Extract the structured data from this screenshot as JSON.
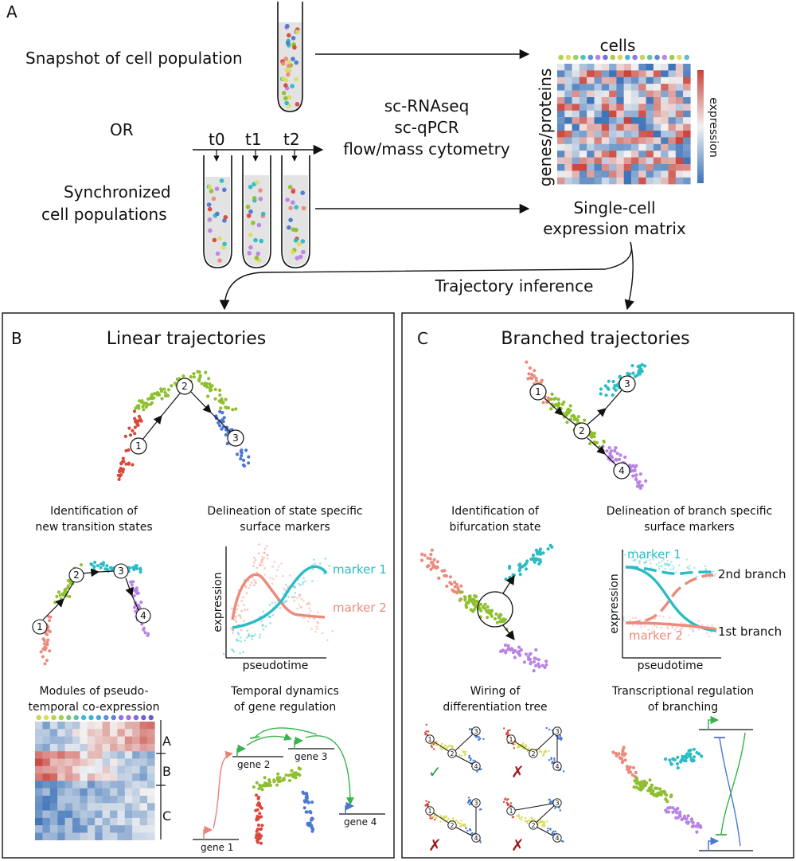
{
  "panel_letters": {
    "a": "A",
    "b": "B",
    "c": "C"
  },
  "panel_a": {
    "snapshot_label": "Snapshot of cell population",
    "or_label": "OR",
    "timepoints": [
      "t0",
      "t1",
      "t2"
    ],
    "synchronized_line1": "Synchronized",
    "synchronized_line2": "cell populations",
    "methods": [
      "sc-RNAseq",
      "sc-qPCR",
      "flow/mass cytometry"
    ],
    "matrix_cols_label": "cells",
    "matrix_rows_label": "genes/proteins",
    "colorbar_label": "expression",
    "matrix_title_line1": "Single-cell",
    "matrix_title_line2": "expression matrix",
    "trajectory_inference": "Trajectory inference"
  },
  "panel_b": {
    "title": "Linear trajectories",
    "states": [
      "1",
      "2",
      "3",
      "4"
    ],
    "ident_line1": "Identification of",
    "ident_line2": "new transition states",
    "delin_line1": "Delineation of state specific",
    "delin_line2": "surface markers",
    "marker1": "marker 1",
    "marker2": "marker 2",
    "ylabel": "expression",
    "xlabel": "pseudotime",
    "modules_line1": "Modules of pseudo-",
    "modules_line2": "temporal co-expression",
    "module_labels": [
      "A",
      "B",
      "C"
    ],
    "temporal_line1": "Temporal dynamics",
    "temporal_line2": "of gene regulation",
    "genes": [
      "gene 1",
      "gene 2",
      "gene 3",
      "gene 4"
    ]
  },
  "panel_c": {
    "title": "Branched trajectories",
    "ident_line1": "Identification of",
    "ident_line2": "bifurcation state",
    "delin_line1": "Delineation of branch specific",
    "delin_line2": "surface markers",
    "marker1": "marker 1",
    "marker2": "marker 2",
    "branch2": "2nd branch",
    "branch1": "1st branch",
    "ylabel": "expression",
    "xlabel": "pseudotime",
    "wiring_line1": "Wiring of",
    "wiring_line2": "differentiation tree",
    "check": "✓",
    "cross": "✗",
    "transcr_line1": "Transcriptional regulation",
    "transcr_line2": "of branching"
  },
  "colors": {
    "red": "#d9473a",
    "salmon": "#ec8a7c",
    "green": "#8ebf2e",
    "blue": "#4a78d0",
    "cyan": "#2bbcc4",
    "purple": "#b983e6",
    "yellow": "#d8de5a",
    "arrow_green": "#35b54a",
    "arrow_salmon": "#e98378",
    "check_green": "#2b9a3c",
    "cross_red": "#9b1c1c"
  }
}
